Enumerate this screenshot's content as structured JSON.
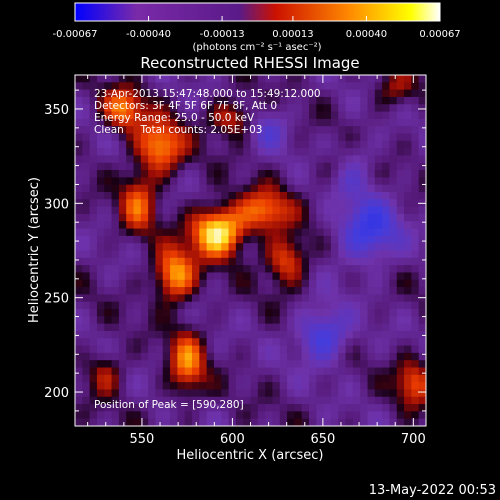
{
  "chart_data": {
    "type": "heatmap",
    "title": "Reconstructed RHESSI Image",
    "xlabel": "Heliocentric X (arcsec)",
    "ylabel": "Heliocentric Y (arcsec)",
    "xlim": [
      513,
      707
    ],
    "ylim": [
      182,
      368
    ],
    "x_ticks": [
      550,
      600,
      650,
      700
    ],
    "y_ticks": [
      200,
      250,
      300,
      350
    ],
    "colorbar": {
      "range": [
        -0.00067,
        0.00067
      ],
      "tick_values": [
        -0.00067,
        -0.0004,
        -0.00013,
        0.00013,
        0.0004,
        0.00067
      ],
      "tick_labels": [
        "-0.00067",
        "-0.00040",
        "-0.00013",
        "0.00013",
        "0.00040",
        "0.00067"
      ],
      "unit_label": "(photons cm⁻² s⁻¹ asec⁻²)",
      "colors": [
        "#0000ff",
        "#7a2aa8",
        "#5a1a88",
        "#cc1100",
        "#ff8800",
        "#ffff00",
        "#ffffff"
      ]
    },
    "annotations": [
      "23-Apr-2013 15:47:48.000 to 15:49:12.000",
      "Detectors: 3F 4F 5F 6F 7F 8F, Att 0",
      "Energy Range: 25.0 - 50.0 keV",
      "Clean     Total counts: 2.05E+03"
    ],
    "peak_label": "Position of Peak = [590,280]",
    "peak": [
      590,
      280
    ],
    "sources": [
      {
        "x": 592,
        "y": 285,
        "amp": 1.0,
        "sx": 10,
        "sy": 9
      },
      {
        "x": 568,
        "y": 262,
        "amp": 0.75,
        "sx": 8,
        "sy": 10
      },
      {
        "x": 618,
        "y": 296,
        "amp": 0.6,
        "sx": 10,
        "sy": 8
      },
      {
        "x": 560,
        "y": 330,
        "amp": 0.7,
        "sx": 9,
        "sy": 10
      },
      {
        "x": 540,
        "y": 350,
        "amp": 0.6,
        "sx": 8,
        "sy": 8
      },
      {
        "x": 630,
        "y": 270,
        "amp": 0.55,
        "sx": 8,
        "sy": 9
      },
      {
        "x": 548,
        "y": 300,
        "amp": 0.5,
        "sx": 7,
        "sy": 12
      },
      {
        "x": 575,
        "y": 215,
        "amp": 0.6,
        "sx": 7,
        "sy": 12
      },
      {
        "x": 600,
        "y": 345,
        "amp": 0.45,
        "sx": 9,
        "sy": 7
      },
      {
        "x": 660,
        "y": 320,
        "amp": 0.35,
        "sx": 9,
        "sy": 7
      },
      {
        "x": 700,
        "y": 205,
        "amp": 0.5,
        "sx": 7,
        "sy": 9
      },
      {
        "x": 690,
        "y": 360,
        "amp": 0.3,
        "sx": 8,
        "sy": 7
      },
      {
        "x": 530,
        "y": 210,
        "amp": 0.35,
        "sx": 7,
        "sy": 8
      },
      {
        "x": 650,
        "y": 230,
        "amp": -0.55,
        "sx": 10,
        "sy": 10
      },
      {
        "x": 675,
        "y": 285,
        "amp": -0.6,
        "sx": 12,
        "sy": 12
      },
      {
        "x": 665,
        "y": 320,
        "amp": -0.45,
        "sx": 9,
        "sy": 9
      },
      {
        "x": 620,
        "y": 340,
        "amp": -0.3,
        "sx": 8,
        "sy": 8
      }
    ]
  },
  "footer": {
    "timestamp": "13-May-2022 00:53"
  }
}
